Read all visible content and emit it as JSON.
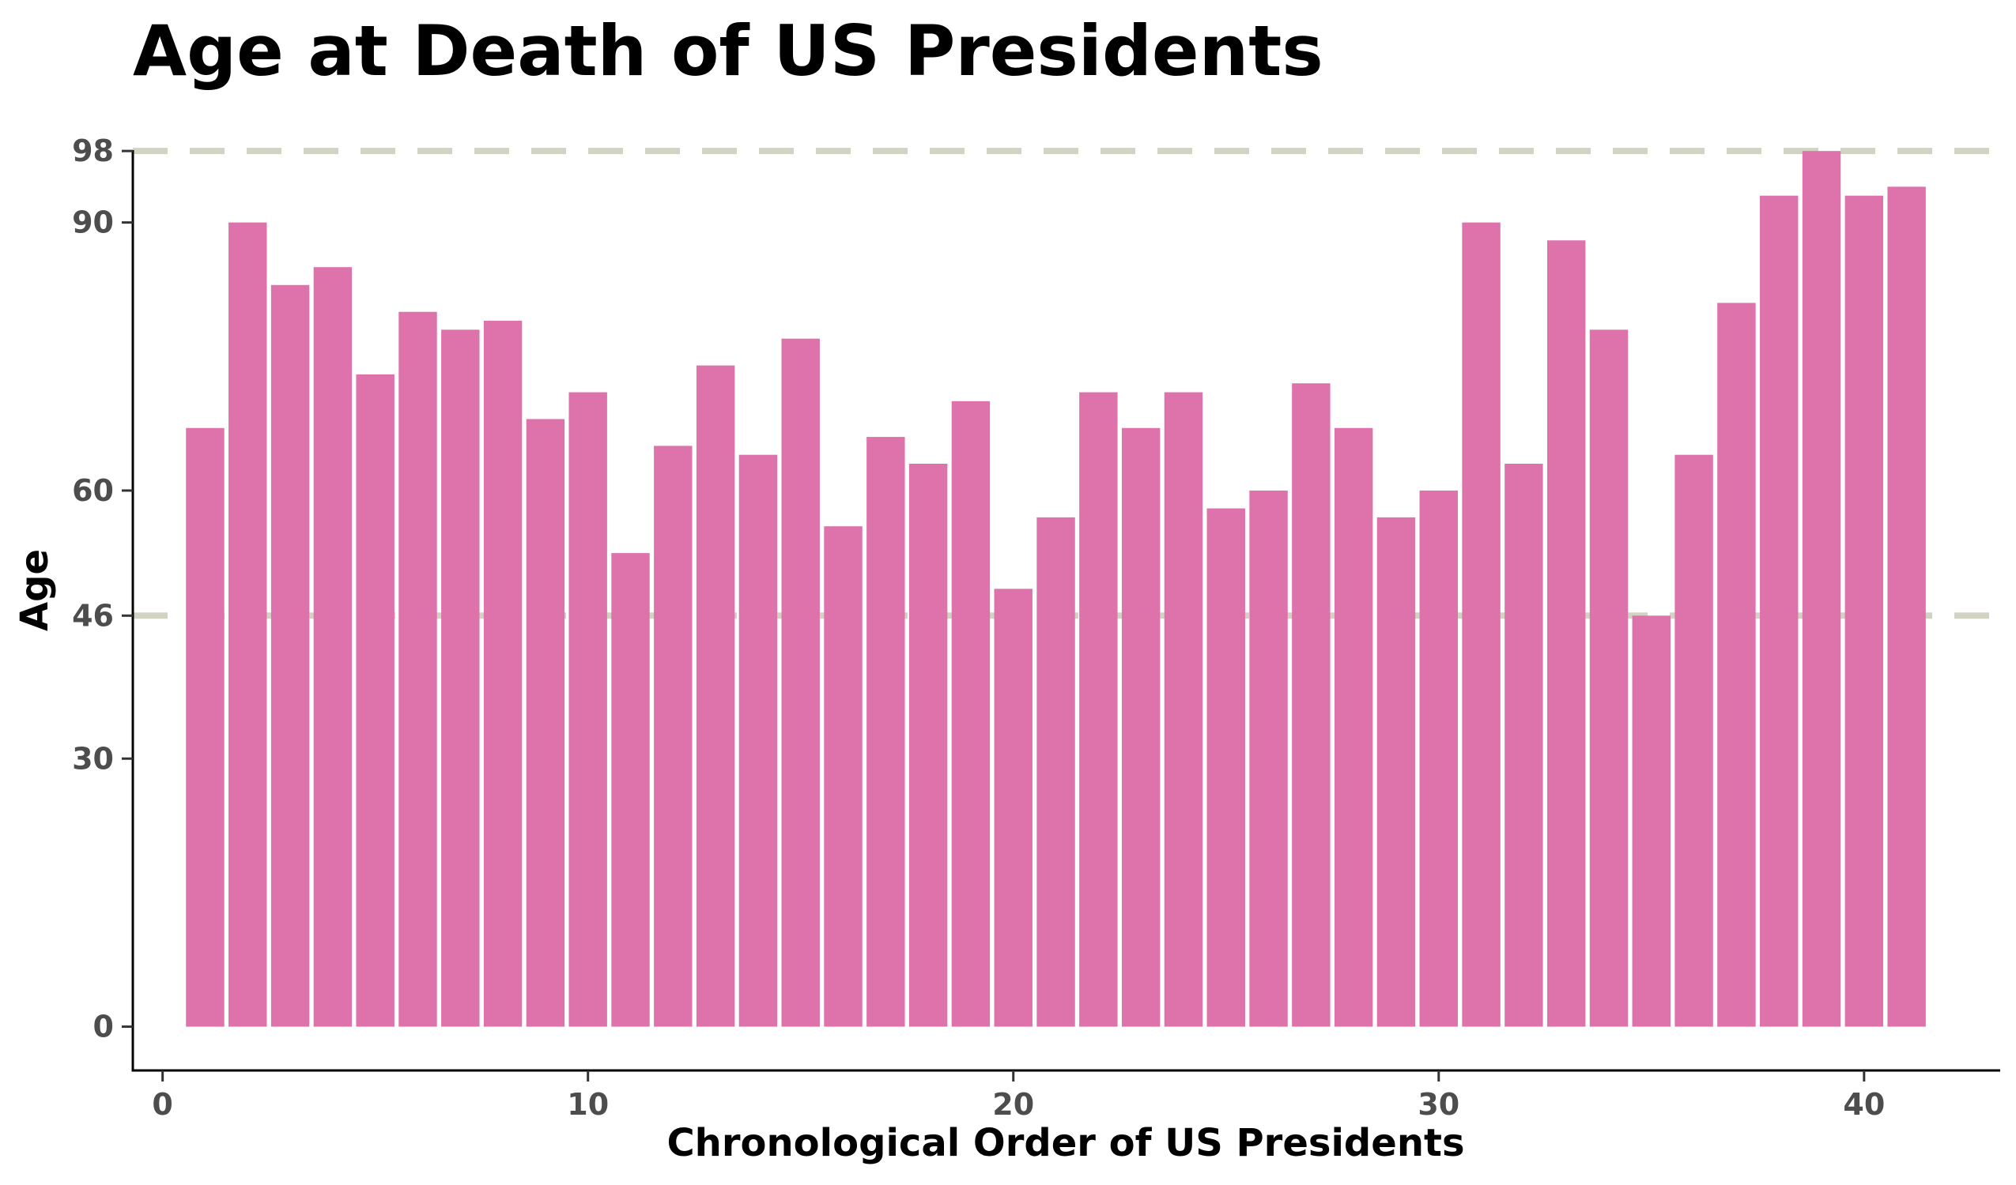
{
  "chart_data": {
    "type": "bar",
    "title": "Age at Death of US Presidents",
    "xlabel": "Chronological Order of US Presidents",
    "ylabel": "Age",
    "x": [
      1,
      2,
      3,
      4,
      5,
      6,
      7,
      8,
      9,
      10,
      11,
      12,
      13,
      14,
      15,
      16,
      17,
      18,
      19,
      20,
      21,
      22,
      23,
      24,
      25,
      26,
      27,
      28,
      29,
      30,
      31,
      32,
      33,
      34,
      35,
      36,
      37,
      38,
      39,
      40,
      41
    ],
    "values": [
      67,
      90,
      83,
      85,
      73,
      80,
      78,
      79,
      68,
      71,
      53,
      65,
      74,
      64,
      77,
      56,
      66,
      63,
      70,
      49,
      57,
      71,
      67,
      71,
      58,
      60,
      72,
      67,
      57,
      60,
      90,
      63,
      88,
      78,
      46,
      64,
      81,
      93,
      98,
      93,
      94
    ],
    "xlim": [
      -0.7,
      43.2
    ],
    "ylim": [
      -4.9,
      98.1
    ],
    "x_ticks": [
      0,
      10,
      20,
      30,
      40
    ],
    "y_ticks": [
      0,
      30,
      46,
      60,
      90,
      98
    ],
    "reference_lines": [
      {
        "y": 98,
        "style": "dashed"
      },
      {
        "y": 46,
        "style": "dashed"
      }
    ],
    "grid": false,
    "colors": {
      "bar": "#de73ab",
      "reference_line": "#d3d3c3",
      "axis": "#000000",
      "tick_label": "#4d4d4d"
    }
  }
}
